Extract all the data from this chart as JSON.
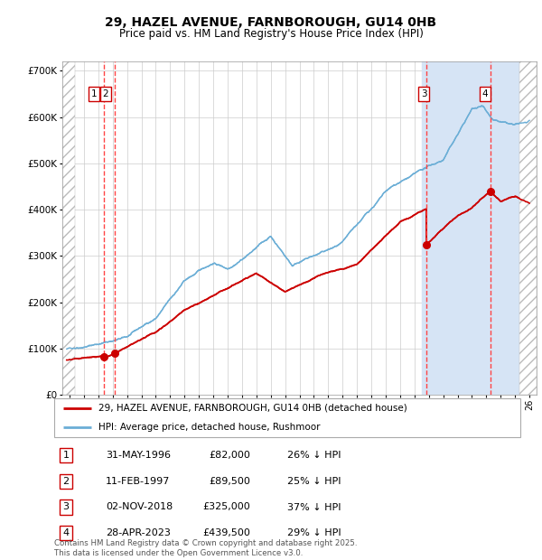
{
  "title": "29, HAZEL AVENUE, FARNBOROUGH, GU14 0HB",
  "subtitle": "Price paid vs. HM Land Registry's House Price Index (HPI)",
  "ylim": [
    0,
    720000
  ],
  "yticks": [
    0,
    100000,
    200000,
    300000,
    400000,
    500000,
    600000,
    700000
  ],
  "ytick_labels": [
    "£0",
    "£100K",
    "£200K",
    "£300K",
    "£400K",
    "£500K",
    "£600K",
    "£700K"
  ],
  "xlim_start": 1993.5,
  "xlim_end": 2026.5,
  "hpi_color": "#6baed6",
  "price_color": "#cc0000",
  "sale_vline_color": "#ff4444",
  "highlight_bg_color": "#d6e4f5",
  "transactions": [
    {
      "num": 1,
      "date_num": 1996.42,
      "price": 82000
    },
    {
      "num": 2,
      "date_num": 1997.12,
      "price": 89500
    },
    {
      "num": 3,
      "date_num": 2018.84,
      "price": 325000
    },
    {
      "num": 4,
      "date_num": 2023.32,
      "price": 439500
    }
  ],
  "table_rows": [
    {
      "num": 1,
      "date": "31-MAY-1996",
      "price": "£82,000",
      "hpi_rel": "26% ↓ HPI"
    },
    {
      "num": 2,
      "date": "11-FEB-1997",
      "price": "£89,500",
      "hpi_rel": "25% ↓ HPI"
    },
    {
      "num": 3,
      "date": "02-NOV-2018",
      "price": "£325,000",
      "hpi_rel": "37% ↓ HPI"
    },
    {
      "num": 4,
      "date": "28-APR-2023",
      "price": "£439,500",
      "hpi_rel": "29% ↓ HPI"
    }
  ],
  "footer": "Contains HM Land Registry data © Crown copyright and database right 2025.\nThis data is licensed under the Open Government Licence v3.0.",
  "legend_line1": "29, HAZEL AVENUE, FARNBOROUGH, GU14 0HB (detached house)",
  "legend_line2": "HPI: Average price, detached house, Rushmoor"
}
